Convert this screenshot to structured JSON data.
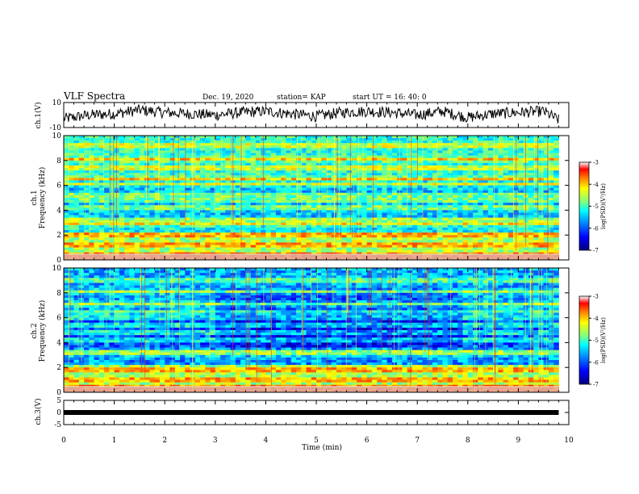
{
  "header": {
    "title": "VLF Spectra",
    "date": "Dec. 19, 2020",
    "station": "station= KAP",
    "start": "start  UT  =   16: 40: 0"
  },
  "colors": {
    "waveform": "#000000",
    "axes": "#000000",
    "colormap": [
      "#00007f",
      "#0000ff",
      "#007fff",
      "#00ffff",
      "#7fff7f",
      "#ffff00",
      "#ff7f00",
      "#ff0000",
      "#7f0000"
    ]
  },
  "chart_data": [
    {
      "type": "line",
      "panel": "waveform-ch1",
      "ylabel": "ch.1(V)",
      "ylim": [
        -10,
        10
      ],
      "yticks": [
        "10",
        "-10"
      ],
      "xlim": [
        0,
        10
      ],
      "description_series": [
        {
          "x": [
            0,
            0.5,
            1,
            1.5,
            2,
            2.5,
            3,
            3.5,
            4,
            4.5,
            5,
            5.5,
            6,
            6.5,
            7,
            7.5,
            8,
            8.5,
            9,
            9.5,
            9.8
          ],
          "values": [
            -3,
            0,
            1,
            4,
            2,
            1,
            0,
            2,
            3,
            1,
            -1,
            2,
            3,
            2,
            0,
            3,
            -2,
            1,
            2,
            3,
            -4
          ]
        }
      ]
    },
    {
      "type": "heatmap",
      "panel": "spectrogram-ch1",
      "ylabel": "ch.1\nFrequency (kHz)",
      "ylim": [
        0,
        10
      ],
      "yticks": [
        "0",
        "2",
        "4",
        "6",
        "8",
        "10"
      ],
      "xlim": [
        0,
        10
      ],
      "colorbar": {
        "label": "log(PSD)(V²/Hz)",
        "range": [
          -7,
          -3
        ],
        "ticks": [
          "-3",
          "-4",
          "-5",
          "-6",
          "-7"
        ]
      },
      "bands_khz": [
        0.2,
        1.2,
        2.0,
        2.9,
        3.2,
        4.2,
        4.8,
        5.2,
        6.1,
        6.5,
        7.4,
        8.1,
        9.2
      ]
    },
    {
      "type": "heatmap",
      "panel": "spectrogram-ch2",
      "ylabel": "ch.2\nFrequency (kHz)",
      "ylim": [
        0,
        10
      ],
      "yticks": [
        "0",
        "2",
        "4",
        "6",
        "8",
        "10"
      ],
      "xlim": [
        0,
        10
      ],
      "colorbar": {
        "label": "log(PSD)(V²/Hz)",
        "range": [
          -7,
          -3
        ],
        "ticks": [
          "-3",
          "-4",
          "-5",
          "-6",
          "-7"
        ]
      },
      "bands_khz": [
        0.2,
        1.0,
        1.8,
        3.1,
        3.3,
        4.2,
        4.8,
        5.4,
        6.0,
        6.4,
        7.1,
        8.1,
        9.0
      ]
    },
    {
      "type": "line",
      "panel": "waveform-ch3",
      "ylabel": "ch.3(V)",
      "ylim": [
        -5,
        5
      ],
      "yticks": [
        "5",
        "0",
        "-5"
      ],
      "xlim": [
        0,
        10
      ],
      "xlabel": "Time  (min)",
      "xticks": [
        "0",
        "1",
        "2",
        "3",
        "4",
        "5",
        "6",
        "7",
        "8",
        "9",
        "10"
      ],
      "description_series": [
        {
          "x": [
            0,
            9.8
          ],
          "values": [
            0,
            0
          ]
        }
      ]
    }
  ]
}
